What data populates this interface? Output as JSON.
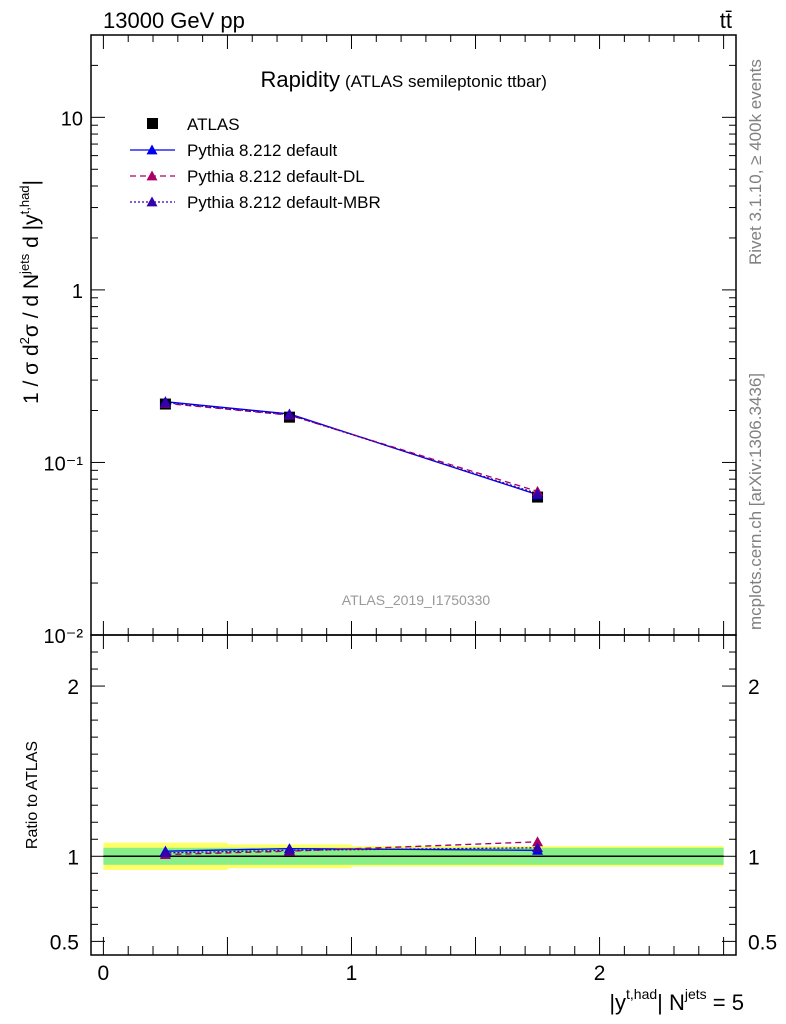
{
  "header": {
    "energy_label": "13000 GeV pp",
    "process_label": "tt̄"
  },
  "side_labels": {
    "rivet": "Rivet 3.1.10, ≥ 400k events",
    "mcplots": "mcplots.cern.ch [arXiv:1306.3436]"
  },
  "chart_data": {
    "type": "line",
    "title": "Rapidity",
    "subtitle": "(ATLAS semileptonic ttbar)",
    "analysis_id": "ATLAS_2019_I1750330",
    "xlabel": "|y^{t,had}| N^{jets} = 5",
    "ylabel": "1 / σ d²σ / d N^{jets} d |y^{t,had}|",
    "ratio_ylabel": "Ratio to ATLAS",
    "xlim": [
      -0.05,
      2.55
    ],
    "ylim_main": [
      0.01,
      30
    ],
    "ylim_ratio": [
      0.42,
      2.3
    ],
    "main_yticks": [
      {
        "value": 10,
        "label": "10"
      },
      {
        "value": 1,
        "label": "1"
      },
      {
        "value": 0.1,
        "label": "10⁻¹"
      },
      {
        "value": 0.01,
        "label": "10⁻²"
      }
    ],
    "ratio_yticks": [
      {
        "value": 2,
        "label": "2"
      },
      {
        "value": 1,
        "label": "1"
      },
      {
        "value": 0.5,
        "label": "0.5"
      }
    ],
    "xticks": [
      {
        "value": 0,
        "label": "0"
      },
      {
        "value": 1,
        "label": "1"
      },
      {
        "value": 2,
        "label": "2"
      }
    ],
    "bins": [
      [
        0,
        0.5
      ],
      [
        0.5,
        1.0
      ],
      [
        1.0,
        2.5
      ]
    ],
    "x": [
      0.25,
      0.75,
      1.75
    ],
    "data": {
      "name": "ATLAS",
      "values": [
        0.218,
        0.183,
        0.063
      ],
      "band_inner": [
        0.05,
        0.05,
        0.05
      ],
      "band_outer": [
        0.08,
        0.07,
        0.06
      ]
    },
    "series": [
      {
        "name": "Pythia 8.212 default",
        "color": "#0000ee",
        "dash": "",
        "values": [
          0.225,
          0.191,
          0.065
        ],
        "ratio": [
          1.03,
          1.045,
          1.035
        ]
      },
      {
        "name": "Pythia 8.212 default-DL",
        "color": "#aa0066",
        "dash": "6,4",
        "values": [
          0.22,
          0.188,
          0.068
        ],
        "ratio": [
          1.01,
          1.03,
          1.085
        ]
      },
      {
        "name": "Pythia 8.212 default-MBR",
        "color": "#3300aa",
        "dash": "2,2",
        "values": [
          0.222,
          0.189,
          0.066
        ],
        "ratio": [
          1.02,
          1.035,
          1.05
        ]
      }
    ]
  }
}
